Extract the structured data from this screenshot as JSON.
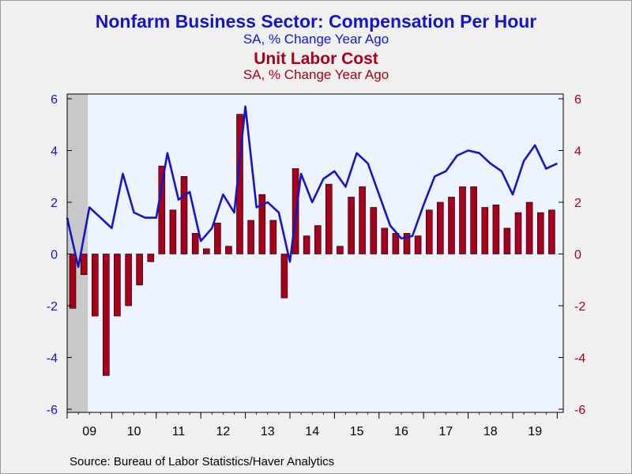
{
  "header": {
    "title_blue": "Nonfarm Business Sector: Compensation Per Hour",
    "subtitle_blue": "SA, % Change   Year Ago",
    "title_red": "Unit Labor Cost",
    "subtitle_red": "SA, % Change   Year Ago"
  },
  "footer": {
    "source": "Source:  Bureau of Labor Statistics/Haver Analytics"
  },
  "colors": {
    "blue": "#1515c8",
    "red": "#a8001a",
    "plot_bg": "#eef4ff",
    "shade": "#c8c8c8",
    "bar_fill": "#a8001a"
  },
  "chart_data": {
    "type": "bar+line",
    "title": "Nonfarm Business Sector: Compensation Per Hour / Unit Labor Cost",
    "x_labels": [
      "09",
      "10",
      "11",
      "12",
      "13",
      "14",
      "15",
      "16",
      "17",
      "18",
      "19"
    ],
    "x_unit": "quarter",
    "start": "2009Q1",
    "ylim": [
      -6,
      6
    ],
    "yticks": [
      -6,
      -4,
      -2,
      0,
      2,
      4,
      6
    ],
    "y2lim": [
      -6,
      6
    ],
    "y2ticks": [
      -6,
      -4,
      -2,
      0,
      2,
      4,
      6
    ],
    "grid": false,
    "recession_shading": {
      "from": "2009Q1",
      "to": "2009Q2"
    },
    "series": [
      {
        "name": "Unit Labor Cost",
        "type": "bar",
        "axis": "right",
        "values": [
          -2.1,
          -0.8,
          -2.4,
          -4.7,
          -2.4,
          -2.0,
          -1.2,
          -0.3,
          3.4,
          1.7,
          3.0,
          0.8,
          0.2,
          1.2,
          0.3,
          5.4,
          1.3,
          2.3,
          1.3,
          -1.7,
          3.3,
          0.7,
          1.1,
          2.7,
          0.3,
          2.2,
          2.6,
          1.8,
          1.0,
          0.8,
          0.8,
          0.7,
          1.7,
          2.0,
          2.2,
          2.6,
          2.6,
          1.8,
          1.9,
          1.0,
          1.6,
          2.0,
          1.6,
          1.7
        ]
      },
      {
        "name": "Compensation Per Hour",
        "type": "line",
        "axis": "left",
        "values": [
          1.4,
          -0.5,
          1.8,
          1.4,
          1.0,
          3.1,
          1.6,
          1.4,
          1.4,
          3.9,
          2.1,
          2.4,
          0.5,
          1.0,
          2.3,
          1.6,
          5.7,
          1.8,
          2.0,
          1.6,
          -0.3,
          3.1,
          2.0,
          2.9,
          3.2,
          2.6,
          3.9,
          3.5,
          2.3,
          1.1,
          0.6,
          0.7,
          1.9,
          3.0,
          3.2,
          3.8,
          4.0,
          3.9,
          3.5,
          3.2,
          2.3,
          3.6,
          4.2,
          3.3,
          3.5
        ]
      }
    ]
  }
}
